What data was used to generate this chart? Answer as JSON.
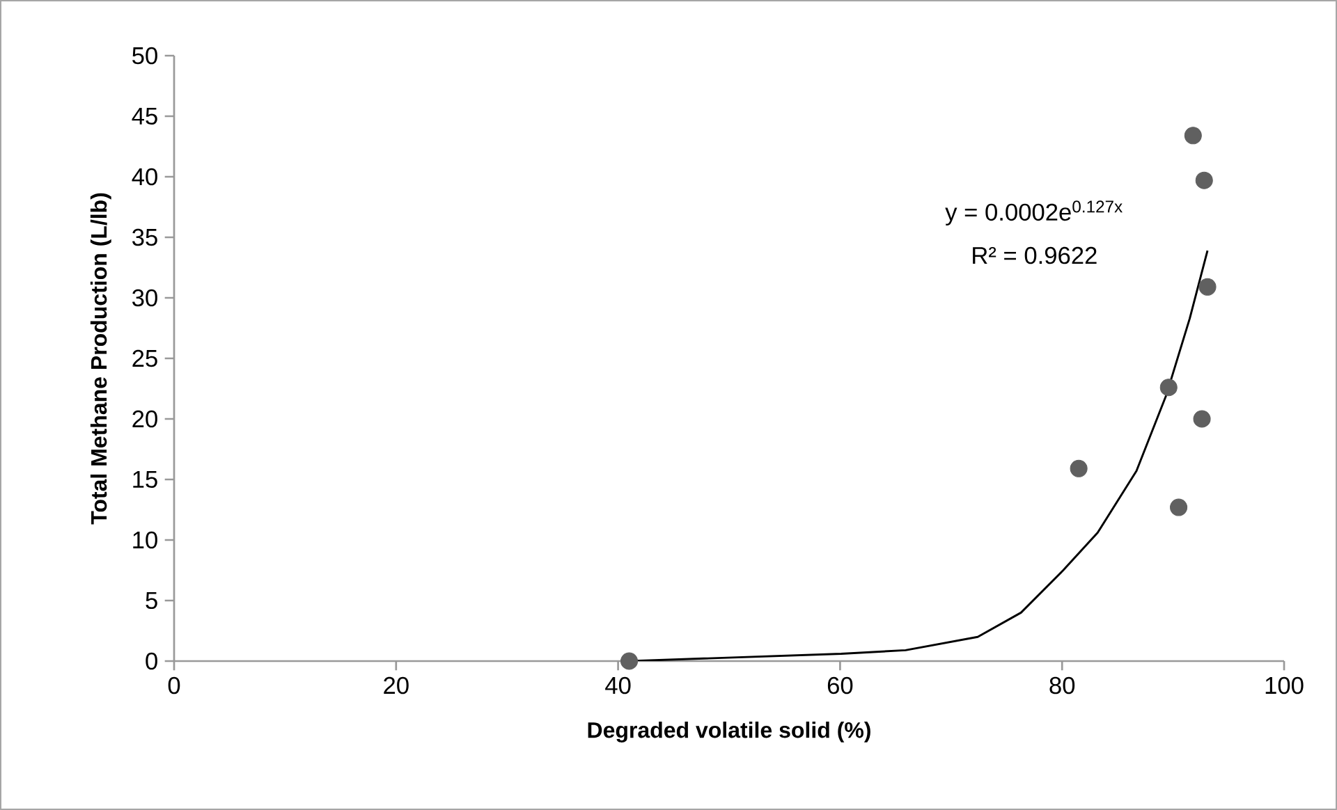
{
  "chart_data": {
    "type": "scatter",
    "xlabel": "Degraded volatile solid (%)",
    "ylabel": "Total Methane Production (L/lb)",
    "xlim": [
      0,
      100
    ],
    "xticks": [
      0,
      20,
      40,
      60,
      80,
      100
    ],
    "ylim": [
      0,
      50
    ],
    "yticks": [
      0,
      5,
      10,
      15,
      20,
      25,
      30,
      35,
      40,
      45,
      50
    ],
    "grid": false,
    "series": [
      {
        "color": "#606060",
        "marker": "circle",
        "x": [
          41.0,
          81.5,
          89.6,
          90.5,
          91.8,
          92.6,
          92.8,
          93.1
        ],
        "values": [
          0,
          15.9,
          22.6,
          12.7,
          43.4,
          20.0,
          39.7,
          30.9
        ]
      },
      {
        "type": "line",
        "color": "#000000",
        "marker": "none",
        "line_style": "solid",
        "x": [
          41.0,
          60.1,
          65.9,
          72.4,
          76.3,
          80.1,
          83.2,
          86.7,
          89.4,
          91.5,
          93.1
        ],
        "values": [
          0,
          0.6,
          0.9,
          2.0,
          4.0,
          7.5,
          10.6,
          15.7,
          22.0,
          28.3,
          33.9
        ]
      }
    ],
    "annotations": [
      "y = 0.0002e$^{0.127x}$",
      "R² = 0.9622"
    ]
  }
}
